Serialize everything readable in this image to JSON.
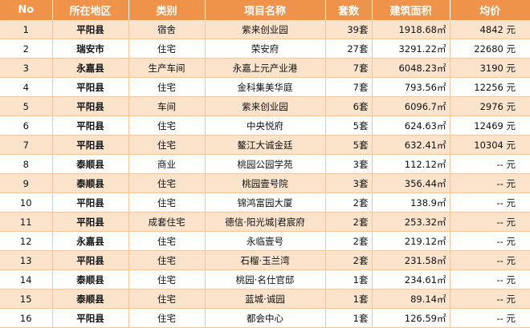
{
  "headers": {
    "no": "No",
    "county": "所在地区",
    "category": "类别",
    "project": "项目名称",
    "units": "套数",
    "area": "建筑面积",
    "price": "均价"
  },
  "rows": [
    {
      "no": "1",
      "county": "平阳县",
      "category": "宿舍",
      "project": "紫来创业园",
      "units": "39套",
      "area": "1918.68㎡",
      "price": "4842  元"
    },
    {
      "no": "2",
      "county": "瑞安市",
      "category": "住宅",
      "project": "荣安府",
      "units": "27套",
      "area": "3291.22㎡",
      "price": "22680  元"
    },
    {
      "no": "3",
      "county": "永嘉县",
      "category": "生产车间",
      "project": "永嘉上元产业港",
      "units": "7套",
      "area": "6048.23㎡",
      "price": "3190  元"
    },
    {
      "no": "4",
      "county": "平阳县",
      "category": "住宅",
      "project": "金科集美华庭",
      "units": "7套",
      "area": "793.56㎡",
      "price": "12256  元"
    },
    {
      "no": "5",
      "county": "平阳县",
      "category": "车间",
      "project": "紫来创业园",
      "units": "6套",
      "area": "6096.7㎡",
      "price": "2976  元"
    },
    {
      "no": "6",
      "county": "平阳县",
      "category": "住宅",
      "project": "中央悦府",
      "units": "5套",
      "area": "624.63㎡",
      "price": "12469  元"
    },
    {
      "no": "7",
      "county": "平阳县",
      "category": "住宅",
      "project": "鳌江大诚金廷",
      "units": "5套",
      "area": "632.41㎡",
      "price": "10304  元"
    },
    {
      "no": "8",
      "county": "泰顺县",
      "category": "商业",
      "project": "桃园公园学苑",
      "units": "3套",
      "area": "112.12㎡",
      "price": "--  元"
    },
    {
      "no": "9",
      "county": "泰顺县",
      "category": "住宅",
      "project": "桃园壹号院",
      "units": "3套",
      "area": "356.44㎡",
      "price": "--  元"
    },
    {
      "no": "10",
      "county": "平阳县",
      "category": "住宅",
      "project": "锦鸿富园大厦",
      "units": "2套",
      "area": "138.9㎡",
      "price": "--  元"
    },
    {
      "no": "11",
      "county": "平阳县",
      "category": "成套住宅",
      "project": "德信·阳光城|君宸府",
      "units": "2套",
      "area": "253.32㎡",
      "price": "--  元"
    },
    {
      "no": "12",
      "county": "永嘉县",
      "category": "住宅",
      "project": "永临壹号",
      "units": "2套",
      "area": "219.12㎡",
      "price": "--  元"
    },
    {
      "no": "13",
      "county": "平阳县",
      "category": "住宅",
      "project": "石榴·玉兰湾",
      "units": "2套",
      "area": "231.58㎡",
      "price": "--  元"
    },
    {
      "no": "14",
      "county": "泰顺县",
      "category": "住宅",
      "project": "桃园·名仕官邸",
      "units": "1套",
      "area": "234.61㎡",
      "price": "--  元"
    },
    {
      "no": "15",
      "county": "泰顺县",
      "category": "住宅",
      "project": "蓝城·诚园",
      "units": "1套",
      "area": "89.14㎡",
      "price": "--  元"
    },
    {
      "no": "16",
      "county": "平阳县",
      "category": "住宅",
      "project": "都会中心",
      "units": "1套",
      "area": "126.59㎡",
      "price": "--  元"
    }
  ]
}
